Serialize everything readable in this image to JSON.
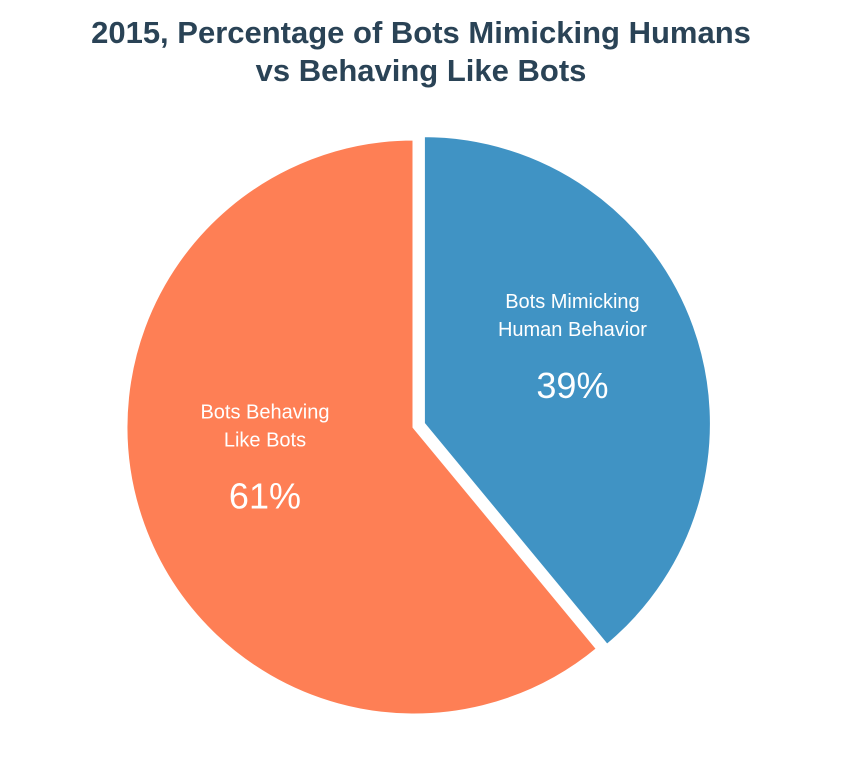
{
  "chart_data": {
    "type": "pie",
    "title_lines": [
      "2015, Percentage of Bots Mimicking Humans",
      "vs Behaving Like Bots"
    ],
    "slices": [
      {
        "label_lines": [
          "Bots Mimicking",
          "Human Behavior"
        ],
        "value": 39,
        "value_label": "39%",
        "color": "#4093c4",
        "exploded": true
      },
      {
        "label_lines": [
          "Bots Behaving",
          "Like Bots"
        ],
        "value": 61,
        "value_label": "61%",
        "color": "#fe7f55",
        "exploded": false
      }
    ],
    "legend": "none"
  }
}
